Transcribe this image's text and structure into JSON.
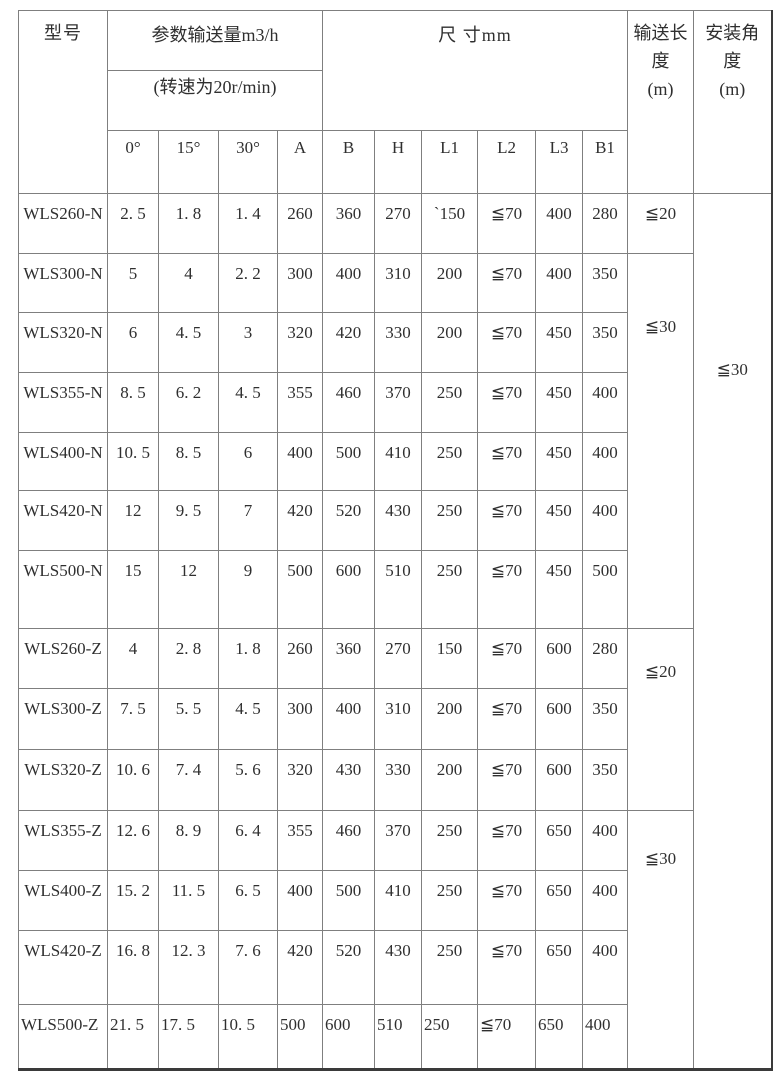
{
  "page": {
    "background": "#ffffff",
    "text_color": "#2f2f2f",
    "grid_line_color": "#7f7f7f"
  },
  "table": {
    "header": {
      "model": "型号",
      "params_title": "参数输送量m3/h",
      "params_subtitle": "(转速为20r/min)",
      "size_title": "尺 寸mm",
      "conveying_length": "输送长\n度\n(m)",
      "install_angle": "安装角\n度\n(m)",
      "sub_columns": [
        "0°",
        "15°",
        "30°",
        "A",
        "B",
        "H",
        "L1",
        "L2",
        "L3",
        "B1"
      ]
    },
    "rows": [
      {
        "model": "WLS260-N",
        "values": [
          "2. 5",
          "1. 8",
          "1. 4",
          "260",
          "360",
          "270",
          "`150",
          "≦70",
          "400",
          "280"
        ]
      },
      {
        "model": "WLS300-N",
        "values": [
          "5",
          "4",
          "2. 2",
          "300",
          "400",
          "310",
          "200",
          "≦70",
          "400",
          "350"
        ]
      },
      {
        "model": "WLS320-N",
        "values": [
          "6",
          "4. 5",
          "3",
          "320",
          "420",
          "330",
          "200",
          "≦70",
          "450",
          "350"
        ]
      },
      {
        "model": "WLS355-N",
        "values": [
          "8. 5",
          "6. 2",
          "4. 5",
          "355",
          "460",
          "370",
          "250",
          "≦70",
          "450",
          "400"
        ]
      },
      {
        "model": "WLS400-N",
        "values": [
          "10. 5",
          "8. 5",
          "6",
          "400",
          "500",
          "410",
          "250",
          "≦70",
          "450",
          "400"
        ]
      },
      {
        "model": "WLS420-N",
        "values": [
          "12",
          "9. 5",
          "7",
          "420",
          "520",
          "430",
          "250",
          "≦70",
          "450",
          "400"
        ]
      },
      {
        "model": "WLS500-N",
        "values": [
          "15",
          "12",
          "9",
          "500",
          "600",
          "510",
          "250",
          "≦70",
          "450",
          "500"
        ]
      },
      {
        "model": "WLS260-Z",
        "values": [
          "4",
          "2. 8",
          "1. 8",
          "260",
          "360",
          "270",
          "150",
          "≦70",
          "600",
          "280"
        ]
      },
      {
        "model": "WLS300-Z",
        "values": [
          "7. 5",
          "5. 5",
          "4. 5",
          "300",
          "400",
          "310",
          "200",
          "≦70",
          "600",
          "350"
        ]
      },
      {
        "model": "WLS320-Z",
        "values": [
          "10. 6",
          "7. 4",
          "5. 6",
          "320",
          "430",
          "330",
          "200",
          "≦70",
          "600",
          "350"
        ]
      },
      {
        "model": "WLS355-Z",
        "values": [
          "12. 6",
          "8. 9",
          "6. 4",
          "355",
          "460",
          "370",
          "250",
          "≦70",
          "650",
          "400"
        ]
      },
      {
        "model": "WLS400-Z",
        "values": [
          "15. 2",
          "11. 5",
          "6. 5",
          "400",
          "500",
          "410",
          "250",
          "≦70",
          "650",
          "400"
        ]
      },
      {
        "model": "WLS420-Z",
        "values": [
          "16. 8",
          "12. 3",
          "7. 6",
          "420",
          "520",
          "430",
          "250",
          "≦70",
          "650",
          "400"
        ]
      },
      {
        "model": "WLS500-Z",
        "values": [
          "21. 5",
          "17. 5",
          "10. 5",
          "500",
          "600",
          "510",
          "250",
          "≦70",
          "650",
          "400"
        ]
      }
    ],
    "length_cells": [
      {
        "label": "≦20",
        "row_start": 1,
        "row_end": 1
      },
      {
        "label": "≦30",
        "row_start": 2,
        "row_end": 7
      },
      {
        "label": "≦20",
        "row_start": 8,
        "row_end": 10
      },
      {
        "label": "≦30",
        "row_start": 11,
        "row_end": 14
      }
    ],
    "angle_cell": {
      "label": "≦30",
      "row_start": 1,
      "row_end": 14
    }
  }
}
